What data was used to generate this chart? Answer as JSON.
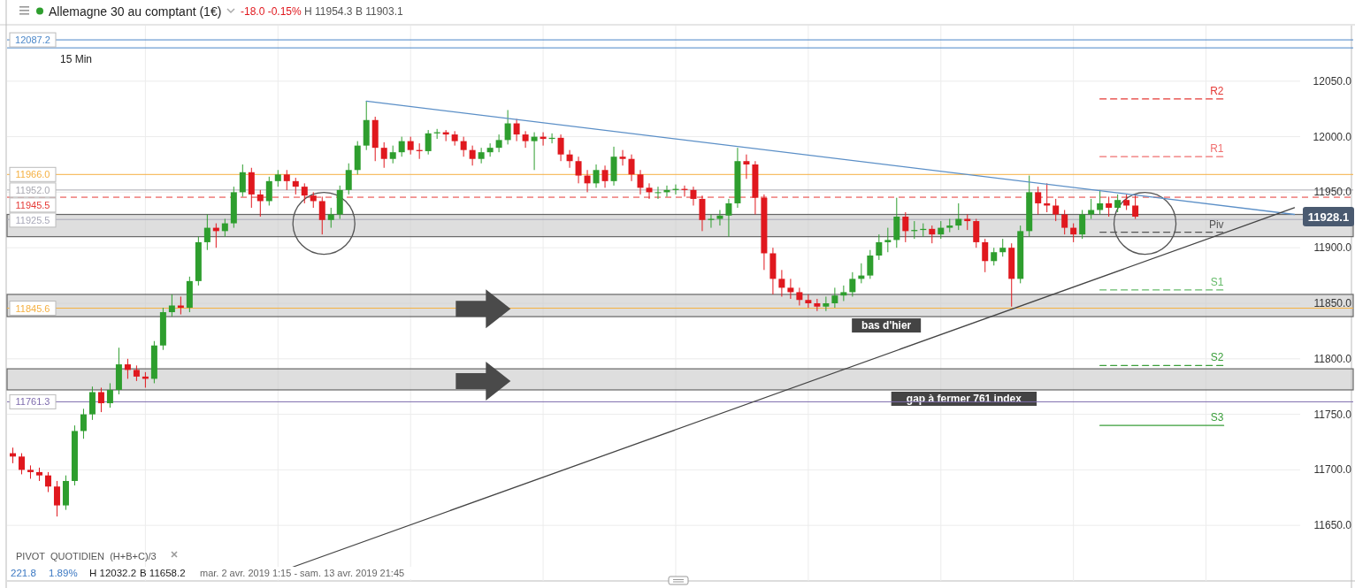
{
  "chart_data": {
    "type": "candlestick",
    "title": "Allemagne 30 au comptant (1€)",
    "subtitle": "-18.0 -0.15% H 11954.3 B 11903.1",
    "categories": [
      null,
      null,
      null,
      null,
      null,
      null,
      null,
      null,
      null,
      null,
      null,
      null,
      null,
      null,
      null,
      null,
      null,
      null,
      null,
      null,
      null,
      null,
      null,
      null,
      null,
      null,
      null,
      null,
      null,
      null,
      null,
      null,
      null,
      null,
      null,
      null,
      null,
      null,
      null,
      null,
      null,
      null,
      null,
      null,
      null,
      null,
      null,
      null,
      null,
      null,
      null,
      null,
      null,
      null,
      null,
      null,
      null,
      null,
      null,
      null,
      null,
      null,
      null,
      null,
      null,
      null,
      null,
      null,
      null,
      null,
      null,
      null,
      null,
      null,
      null,
      null,
      null,
      null,
      null,
      null,
      null,
      null,
      null,
      null,
      null,
      null,
      null,
      null,
      null,
      null,
      null,
      null,
      null,
      null,
      null,
      null,
      null,
      null,
      null,
      null,
      null,
      null,
      null,
      null,
      null,
      null,
      null,
      null,
      null,
      null,
      null,
      null,
      null,
      null,
      null,
      null,
      null,
      null,
      null,
      null,
      null,
      null,
      null,
      null,
      null,
      null,
      null,
      null,
      null,
      null,
      null,
      null,
      null,
      null,
      null,
      null,
      null,
      null,
      null,
      null,
      null,
      null,
      null,
      null,
      null,
      null
    ],
    "ohlc": [
      [
        11715,
        11720,
        11706,
        11712
      ],
      [
        11712,
        11715,
        11696,
        11700
      ],
      [
        11700,
        11704,
        11692,
        11698
      ],
      [
        11698,
        11702,
        11690,
        11695
      ],
      [
        11695,
        11698,
        11680,
        11685
      ],
      [
        11685,
        11690,
        11658,
        11668
      ],
      [
        11668,
        11695,
        11664,
        11690
      ],
      [
        11690,
        11740,
        11686,
        11735
      ],
      [
        11735,
        11755,
        11728,
        11750
      ],
      [
        11750,
        11775,
        11745,
        11770
      ],
      [
        11770,
        11774,
        11752,
        11760
      ],
      [
        11760,
        11778,
        11756,
        11772
      ],
      [
        11772,
        11810,
        11768,
        11795
      ],
      [
        11795,
        11800,
        11782,
        11790
      ],
      [
        11790,
        11794,
        11780,
        11784
      ],
      [
        11784,
        11788,
        11774,
        11782
      ],
      [
        11782,
        11816,
        11778,
        11812
      ],
      [
        11812,
        11846,
        11808,
        11842
      ],
      [
        11842,
        11858,
        11838,
        11848
      ],
      [
        11848,
        11856,
        11840,
        11846
      ],
      [
        11846,
        11874,
        11842,
        11870
      ],
      [
        11870,
        11910,
        11866,
        11905
      ],
      [
        11905,
        11930,
        11898,
        11918
      ],
      [
        11918,
        11922,
        11900,
        11915
      ],
      [
        11915,
        11926,
        11910,
        11922
      ],
      [
        11922,
        11955,
        11918,
        11950
      ],
      [
        11950,
        11975,
        11946,
        11968
      ],
      [
        11968,
        11972,
        11936,
        11948
      ],
      [
        11948,
        11952,
        11928,
        11942
      ],
      [
        11942,
        11964,
        11938,
        11960
      ],
      [
        11960,
        11970,
        11955,
        11966
      ],
      [
        11966,
        11970,
        11952,
        11960
      ],
      [
        11960,
        11963,
        11948,
        11955
      ],
      [
        11955,
        11958,
        11940,
        11947
      ],
      [
        11947,
        11950,
        11936,
        11942
      ],
      [
        11942,
        11946,
        11912,
        11925
      ],
      [
        11925,
        11936,
        11918,
        11930
      ],
      [
        11930,
        11956,
        11926,
        11952
      ],
      [
        11952,
        11976,
        11948,
        11970
      ],
      [
        11970,
        11996,
        11966,
        11992
      ],
      [
        11992,
        12032,
        11988,
        12015
      ],
      [
        12015,
        12018,
        11978,
        11990
      ],
      [
        11990,
        11995,
        11972,
        11980
      ],
      [
        11980,
        11992,
        11976,
        11986
      ],
      [
        11986,
        12000,
        11982,
        11996
      ],
      [
        11996,
        12000,
        11984,
        11988
      ],
      [
        11988,
        11994,
        11980,
        11987
      ],
      [
        11987,
        12006,
        11984,
        12003
      ],
      [
        12003,
        12007,
        11998,
        12004
      ],
      [
        12004,
        12006,
        11996,
        12002
      ],
      [
        12002,
        12005,
        11992,
        11996
      ],
      [
        11996,
        12000,
        11982,
        11988
      ],
      [
        11988,
        11992,
        11974,
        11980
      ],
      [
        11980,
        11990,
        11976,
        11986
      ],
      [
        11986,
        11994,
        11982,
        11990
      ],
      [
        11990,
        12002,
        11986,
        11997
      ],
      [
        11997,
        12024,
        11993,
        12012
      ],
      [
        12012,
        12016,
        11996,
        12002
      ],
      [
        12002,
        12005,
        11990,
        11996
      ],
      [
        11996,
        12004,
        11970,
        12000
      ],
      [
        12000,
        12004,
        11992,
        11998
      ],
      [
        11998,
        12003,
        11994,
        11999
      ],
      [
        11999,
        12002,
        11978,
        11984
      ],
      [
        11984,
        11988,
        11972,
        11978
      ],
      [
        11978,
        11982,
        11958,
        11965
      ],
      [
        11965,
        11970,
        11950,
        11958
      ],
      [
        11958,
        11975,
        11954,
        11970
      ],
      [
        11970,
        11974,
        11954,
        11960
      ],
      [
        11960,
        11991,
        11956,
        11982
      ],
      [
        11982,
        11988,
        11974,
        11980
      ],
      [
        11980,
        11984,
        11960,
        11966
      ],
      [
        11966,
        11970,
        11948,
        11954
      ],
      [
        11954,
        11958,
        11944,
        11950
      ],
      [
        11950,
        11955,
        11944,
        11950
      ],
      [
        11950,
        11956,
        11946,
        11952
      ],
      [
        11952,
        11957,
        11948,
        11953
      ],
      [
        11953,
        11956,
        11946,
        11952
      ],
      [
        11952,
        11955,
        11938,
        11944
      ],
      [
        11944,
        11947,
        11915,
        11925
      ],
      [
        11925,
        11930,
        11918,
        11926
      ],
      [
        11926,
        11934,
        11920,
        11929
      ],
      [
        11929,
        11944,
        11910,
        11940
      ],
      [
        11940,
        11990,
        11936,
        11978
      ],
      [
        11978,
        11984,
        11962,
        11975
      ],
      [
        11975,
        11978,
        11930,
        11945
      ],
      [
        11945,
        11948,
        11880,
        11895
      ],
      [
        11895,
        11900,
        11858,
        11872
      ],
      [
        11872,
        11880,
        11856,
        11864
      ],
      [
        11864,
        11872,
        11854,
        11860
      ],
      [
        11860,
        11864,
        11848,
        11853
      ],
      [
        11853,
        11858,
        11846,
        11850
      ],
      [
        11850,
        11854,
        11843,
        11847
      ],
      [
        11847,
        11856,
        11843,
        11850
      ],
      [
        11850,
        11864,
        11846,
        11857
      ],
      [
        11857,
        11866,
        11852,
        11860
      ],
      [
        11860,
        11878,
        11856,
        11872
      ],
      [
        11872,
        11886,
        11868,
        11875
      ],
      [
        11875,
        11898,
        11872,
        11893
      ],
      [
        11893,
        11912,
        11889,
        11905
      ],
      [
        11905,
        11918,
        11896,
        11907
      ],
      [
        11907,
        11945,
        11900,
        11928
      ],
      [
        11928,
        11932,
        11905,
        11915
      ],
      [
        11915,
        11924,
        11908,
        11916
      ],
      [
        11916,
        11922,
        11910,
        11917
      ],
      [
        11917,
        11920,
        11904,
        11912
      ],
      [
        11912,
        11924,
        11908,
        11918
      ],
      [
        11918,
        11926,
        11914,
        11920
      ],
      [
        11920,
        11940,
        11916,
        11926
      ],
      [
        11926,
        11930,
        11916,
        11924
      ],
      [
        11924,
        11926,
        11900,
        11905
      ],
      [
        11905,
        11908,
        11878,
        11888
      ],
      [
        11888,
        11900,
        11884,
        11896
      ],
      [
        11896,
        11908,
        11892,
        11900
      ],
      [
        11900,
        11904,
        11847,
        11872
      ],
      [
        11872,
        11920,
        11868,
        11915
      ],
      [
        11915,
        11965,
        11910,
        11950
      ],
      [
        11950,
        11955,
        11930,
        11940
      ],
      [
        11940,
        11958,
        11932,
        11938
      ],
      [
        11938,
        11944,
        11924,
        11930
      ],
      [
        11930,
        11934,
        11912,
        11918
      ],
      [
        11918,
        11922,
        11905,
        11912
      ],
      [
        11912,
        11934,
        11908,
        11930
      ],
      [
        11930,
        11944,
        11926,
        11934
      ],
      [
        11934,
        11952,
        11930,
        11940
      ],
      [
        11940,
        11946,
        11928,
        11936
      ],
      [
        11936,
        11948,
        11932,
        11943
      ],
      [
        11943,
        11948,
        11934,
        11938
      ],
      [
        11938,
        11948,
        11926,
        11928
      ],
      null,
      null,
      null,
      null,
      null,
      null,
      null,
      null,
      null,
      null,
      null,
      null,
      null,
      null,
      null,
      null,
      null,
      null
    ],
    "series": [
      {
        "type": "line",
        "color": "#5b8fc7",
        "line_style": "solid",
        "values": [
          null,
          null,
          null,
          null,
          null,
          null,
          null,
          null,
          null,
          null,
          null,
          null,
          null,
          null,
          null,
          null,
          null,
          null,
          null,
          null,
          null,
          null,
          null,
          null,
          null,
          null,
          null,
          null,
          null,
          null,
          null,
          null,
          null,
          null,
          null,
          null,
          null,
          null,
          null,
          null,
          12032,
          null,
          null,
          null,
          null,
          null,
          null,
          null,
          null,
          null,
          null,
          null,
          null,
          null,
          null,
          null,
          null,
          null,
          null,
          null,
          null,
          null,
          null,
          null,
          null,
          null,
          null,
          null,
          null,
          null,
          null,
          null,
          null,
          null,
          null,
          null,
          null,
          null,
          null,
          null,
          null,
          null,
          null,
          null,
          null,
          null,
          null,
          null,
          null,
          null,
          null,
          null,
          null,
          null,
          null,
          null,
          null,
          null,
          null,
          null,
          null,
          null,
          null,
          null,
          null,
          null,
          null,
          null,
          null,
          null,
          null,
          null,
          null,
          null,
          null,
          null,
          null,
          null,
          null,
          null,
          null,
          null,
          null,
          null,
          null,
          null,
          null,
          null,
          null,
          null,
          null,
          null,
          null,
          null,
          null,
          null,
          null,
          null,
          null,
          null,
          null,
          null,
          null,
          null,
          null,
          11930
        ]
      },
      {
        "type": "line",
        "color": "#444444",
        "line_style": "solid",
        "values": [
          null,
          null,
          null,
          null,
          null,
          null,
          null,
          null,
          null,
          null,
          null,
          null,
          null,
          null,
          null,
          null,
          null,
          null,
          null,
          null,
          null,
          null,
          null,
          null,
          null,
          null,
          null,
          null,
          11602,
          null,
          null,
          null,
          null,
          null,
          null,
          null,
          null,
          null,
          null,
          null,
          null,
          null,
          null,
          null,
          null,
          null,
          null,
          null,
          null,
          null,
          null,
          null,
          null,
          null,
          null,
          null,
          null,
          null,
          null,
          null,
          null,
          null,
          null,
          null,
          null,
          null,
          null,
          null,
          null,
          null,
          null,
          null,
          null,
          null,
          null,
          null,
          null,
          null,
          null,
          null,
          null,
          null,
          null,
          null,
          null,
          null,
          null,
          null,
          null,
          null,
          null,
          null,
          null,
          null,
          null,
          null,
          null,
          null,
          null,
          null,
          null,
          null,
          null,
          null,
          null,
          null,
          null,
          null,
          null,
          null,
          null,
          null,
          null,
          null,
          null,
          null,
          null,
          null,
          null,
          null,
          null,
          null,
          null,
          null,
          null,
          null,
          null,
          null,
          null,
          null,
          null,
          null,
          null,
          null,
          null,
          null,
          null,
          null,
          null,
          null,
          null,
          null,
          null,
          null,
          null,
          11936
        ]
      },
      {
        "type": "line",
        "name": "R2",
        "color": "#e53935",
        "line_style": "dashed",
        "values": [
          null,
          null,
          null,
          null,
          null,
          null,
          null,
          null,
          null,
          null,
          null,
          null,
          null,
          null,
          null,
          null,
          null,
          null,
          null,
          null,
          null,
          null,
          null,
          null,
          null,
          null,
          null,
          null,
          null,
          null,
          null,
          null,
          null,
          null,
          null,
          null,
          null,
          null,
          null,
          null,
          null,
          null,
          null,
          null,
          null,
          null,
          null,
          null,
          null,
          null,
          null,
          null,
          null,
          null,
          null,
          null,
          null,
          null,
          null,
          null,
          null,
          null,
          null,
          null,
          null,
          null,
          null,
          null,
          null,
          null,
          null,
          null,
          null,
          null,
          null,
          null,
          null,
          null,
          null,
          null,
          null,
          null,
          null,
          null,
          null,
          null,
          null,
          null,
          null,
          null,
          null,
          null,
          null,
          null,
          null,
          null,
          null,
          null,
          null,
          null,
          null,
          null,
          null,
          null,
          null,
          null,
          null,
          null,
          null,
          null,
          null,
          null,
          null,
          null,
          null,
          null,
          null,
          null,
          null,
          null,
          null,
          null,
          null,
          12034,
          12034,
          12034,
          12034,
          12034,
          12034,
          12034,
          12034,
          12034,
          12034,
          12034,
          12034,
          12034,
          12034,
          12034,
          null,
          null,
          null,
          null,
          null,
          null,
          null,
          null
        ]
      },
      {
        "type": "line",
        "name": "R1",
        "color": "#f07070",
        "line_style": "dashed",
        "values": [
          null,
          null,
          null,
          null,
          null,
          null,
          null,
          null,
          null,
          null,
          null,
          null,
          null,
          null,
          null,
          null,
          null,
          null,
          null,
          null,
          null,
          null,
          null,
          null,
          null,
          null,
          null,
          null,
          null,
          null,
          null,
          null,
          null,
          null,
          null,
          null,
          null,
          null,
          null,
          null,
          null,
          null,
          null,
          null,
          null,
          null,
          null,
          null,
          null,
          null,
          null,
          null,
          null,
          null,
          null,
          null,
          null,
          null,
          null,
          null,
          null,
          null,
          null,
          null,
          null,
          null,
          null,
          null,
          null,
          null,
          null,
          null,
          null,
          null,
          null,
          null,
          null,
          null,
          null,
          null,
          null,
          null,
          null,
          null,
          null,
          null,
          null,
          null,
          null,
          null,
          null,
          null,
          null,
          null,
          null,
          null,
          null,
          null,
          null,
          null,
          null,
          null,
          null,
          null,
          null,
          null,
          null,
          null,
          null,
          null,
          null,
          null,
          null,
          null,
          null,
          null,
          null,
          null,
          null,
          null,
          null,
          null,
          null,
          11982,
          11982,
          11982,
          11982,
          11982,
          11982,
          11982,
          11982,
          11982,
          11982,
          11982,
          11982,
          11982,
          11982,
          11982,
          null,
          null,
          null,
          null,
          null,
          null,
          null,
          null
        ]
      },
      {
        "type": "line",
        "name": "Piv",
        "color": "#555555",
        "line_style": "dashed",
        "values": [
          null,
          null,
          null,
          null,
          null,
          null,
          null,
          null,
          null,
          null,
          null,
          null,
          null,
          null,
          null,
          null,
          null,
          null,
          null,
          null,
          null,
          null,
          null,
          null,
          null,
          null,
          null,
          null,
          null,
          null,
          null,
          null,
          null,
          null,
          null,
          null,
          null,
          null,
          null,
          null,
          null,
          null,
          null,
          null,
          null,
          null,
          null,
          null,
          null,
          null,
          null,
          null,
          null,
          null,
          null,
          null,
          null,
          null,
          null,
          null,
          null,
          null,
          null,
          null,
          null,
          null,
          null,
          null,
          null,
          null,
          null,
          null,
          null,
          null,
          null,
          null,
          null,
          null,
          null,
          null,
          null,
          null,
          null,
          null,
          null,
          null,
          null,
          null,
          null,
          null,
          null,
          null,
          null,
          null,
          null,
          null,
          null,
          null,
          null,
          null,
          null,
          null,
          null,
          null,
          null,
          null,
          null,
          null,
          null,
          null,
          null,
          null,
          null,
          null,
          null,
          null,
          null,
          null,
          null,
          null,
          null,
          null,
          null,
          11914,
          11914,
          11914,
          11914,
          11914,
          11914,
          11914,
          11914,
          11914,
          11914,
          11914,
          11914,
          11914,
          11914,
          11914,
          null,
          null,
          null,
          null,
          null,
          null,
          null,
          null
        ]
      },
      {
        "type": "line",
        "name": "S1",
        "color": "#66bb6a",
        "line_style": "dashed",
        "values": [
          null,
          null,
          null,
          null,
          null,
          null,
          null,
          null,
          null,
          null,
          null,
          null,
          null,
          null,
          null,
          null,
          null,
          null,
          null,
          null,
          null,
          null,
          null,
          null,
          null,
          null,
          null,
          null,
          null,
          null,
          null,
          null,
          null,
          null,
          null,
          null,
          null,
          null,
          null,
          null,
          null,
          null,
          null,
          null,
          null,
          null,
          null,
          null,
          null,
          null,
          null,
          null,
          null,
          null,
          null,
          null,
          null,
          null,
          null,
          null,
          null,
          null,
          null,
          null,
          null,
          null,
          null,
          null,
          null,
          null,
          null,
          null,
          null,
          null,
          null,
          null,
          null,
          null,
          null,
          null,
          null,
          null,
          null,
          null,
          null,
          null,
          null,
          null,
          null,
          null,
          null,
          null,
          null,
          null,
          null,
          null,
          null,
          null,
          null,
          null,
          null,
          null,
          null,
          null,
          null,
          null,
          null,
          null,
          null,
          null,
          null,
          null,
          null,
          null,
          null,
          null,
          null,
          null,
          null,
          null,
          null,
          null,
          null,
          11862,
          11862,
          11862,
          11862,
          11862,
          11862,
          11862,
          11862,
          11862,
          11862,
          11862,
          11862,
          11862,
          11862,
          11862,
          null,
          null,
          null,
          null,
          null,
          null,
          null,
          null
        ]
      },
      {
        "type": "line",
        "name": "S2",
        "color": "#3a9e3a",
        "line_style": "dashed",
        "values": [
          null,
          null,
          null,
          null,
          null,
          null,
          null,
          null,
          null,
          null,
          null,
          null,
          null,
          null,
          null,
          null,
          null,
          null,
          null,
          null,
          null,
          null,
          null,
          null,
          null,
          null,
          null,
          null,
          null,
          null,
          null,
          null,
          null,
          null,
          null,
          null,
          null,
          null,
          null,
          null,
          null,
          null,
          null,
          null,
          null,
          null,
          null,
          null,
          null,
          null,
          null,
          null,
          null,
          null,
          null,
          null,
          null,
          null,
          null,
          null,
          null,
          null,
          null,
          null,
          null,
          null,
          null,
          null,
          null,
          null,
          null,
          null,
          null,
          null,
          null,
          null,
          null,
          null,
          null,
          null,
          null,
          null,
          null,
          null,
          null,
          null,
          null,
          null,
          null,
          null,
          null,
          null,
          null,
          null,
          null,
          null,
          null,
          null,
          null,
          null,
          null,
          null,
          null,
          null,
          null,
          null,
          null,
          null,
          null,
          null,
          null,
          null,
          null,
          null,
          null,
          null,
          null,
          null,
          null,
          null,
          null,
          null,
          null,
          11794,
          11794,
          11794,
          11794,
          11794,
          11794,
          11794,
          11794,
          11794,
          11794,
          11794,
          11794,
          11794,
          11794,
          11794,
          null,
          null,
          null,
          null,
          null,
          null,
          null,
          null
        ]
      },
      {
        "type": "line",
        "name": "S3",
        "color": "#3a9e3a",
        "line_style": "solid",
        "values": [
          null,
          null,
          null,
          null,
          null,
          null,
          null,
          null,
          null,
          null,
          null,
          null,
          null,
          null,
          null,
          null,
          null,
          null,
          null,
          null,
          null,
          null,
          null,
          null,
          null,
          null,
          null,
          null,
          null,
          null,
          null,
          null,
          null,
          null,
          null,
          null,
          null,
          null,
          null,
          null,
          null,
          null,
          null,
          null,
          null,
          null,
          null,
          null,
          null,
          null,
          null,
          null,
          null,
          null,
          null,
          null,
          null,
          null,
          null,
          null,
          null,
          null,
          null,
          null,
          null,
          null,
          null,
          null,
          null,
          null,
          null,
          null,
          null,
          null,
          null,
          null,
          null,
          null,
          null,
          null,
          null,
          null,
          null,
          null,
          null,
          null,
          null,
          null,
          null,
          null,
          null,
          null,
          null,
          null,
          null,
          null,
          null,
          null,
          null,
          null,
          null,
          null,
          null,
          null,
          null,
          null,
          null,
          null,
          null,
          null,
          null,
          null,
          null,
          null,
          null,
          null,
          null,
          null,
          null,
          null,
          null,
          null,
          null,
          11740,
          11740,
          11740,
          11740,
          11740,
          11740,
          11740,
          11740,
          11740,
          11740,
          11740,
          11740,
          11740,
          11740,
          11740,
          null,
          null,
          null,
          null,
          null,
          null,
          null,
          null
        ]
      }
    ],
    "ref_lines": [
      {
        "axis": "y",
        "value": 12087.2,
        "label": "12087.2",
        "color": "#4a86c8",
        "line_style": "solid"
      },
      {
        "axis": "y",
        "value": 12080,
        "label": null,
        "color": "#4a86c8",
        "line_style": "solid"
      },
      {
        "axis": "y",
        "value": 11966.0,
        "label": "11966.0",
        "color": "#f5b041",
        "line_style": "solid"
      },
      {
        "axis": "y",
        "value": 11952.0,
        "label": "11952.0",
        "color": "#a8a8b0",
        "line_style": "solid"
      },
      {
        "axis": "y",
        "value": 11945.5,
        "label": "11945.5",
        "color": "#e53935",
        "line_style": "dashed"
      },
      {
        "axis": "y",
        "value": 11925.5,
        "label": "11925.5",
        "color": "#a8a8b8",
        "line_style": "solid"
      },
      {
        "axis": "y",
        "value": 11845.6,
        "label": "11845.6",
        "color": "#f5b041",
        "line_style": "solid"
      },
      {
        "axis": "y",
        "value": 11761.3,
        "label": "11761.3",
        "color": "#7e6bad",
        "line_style": "solid"
      }
    ],
    "bands": [
      {
        "axis": "y",
        "from": 11910,
        "to": 11930,
        "label": null,
        "color": "#c8c8c8"
      },
      {
        "axis": "y",
        "from": 11838,
        "to": 11858,
        "label": "bas d'hier",
        "color": "#c8c8c8"
      },
      {
        "axis": "y",
        "from": 11772,
        "to": 11791,
        "label": "gap à fermer 761 index",
        "color": "#c8c8c8"
      }
    ],
    "annotations": [
      {
        "text": "11928.1",
        "y": 11928.1
      },
      "15 Min",
      "PIVOT  QUOTIDIEN  (H+B+C)/3",
      "221.8",
      "1.89%",
      "H 12032.2",
      "B 11658.2",
      "mar. 2 avr. 2019 1:15 - sam. 13 avr. 2019 21:45"
    ],
    "ylim": [
      11600,
      12100
    ],
    "yticks": [
      {
        "value": 11650,
        "label": "11650.0"
      },
      {
        "value": 11700,
        "label": "11700.0"
      },
      {
        "value": 11750,
        "label": "11750.0"
      },
      {
        "value": 11800,
        "label": "11800.0"
      },
      {
        "value": 11850,
        "label": "11850.0"
      },
      {
        "value": 11900,
        "label": "11900.0"
      },
      {
        "value": 11950,
        "label": "11950.0"
      },
      {
        "value": 12000,
        "label": "12000.0"
      },
      {
        "value": 12050,
        "label": "12050.0"
      }
    ],
    "tick_labels": "y",
    "grid": true
  }
}
